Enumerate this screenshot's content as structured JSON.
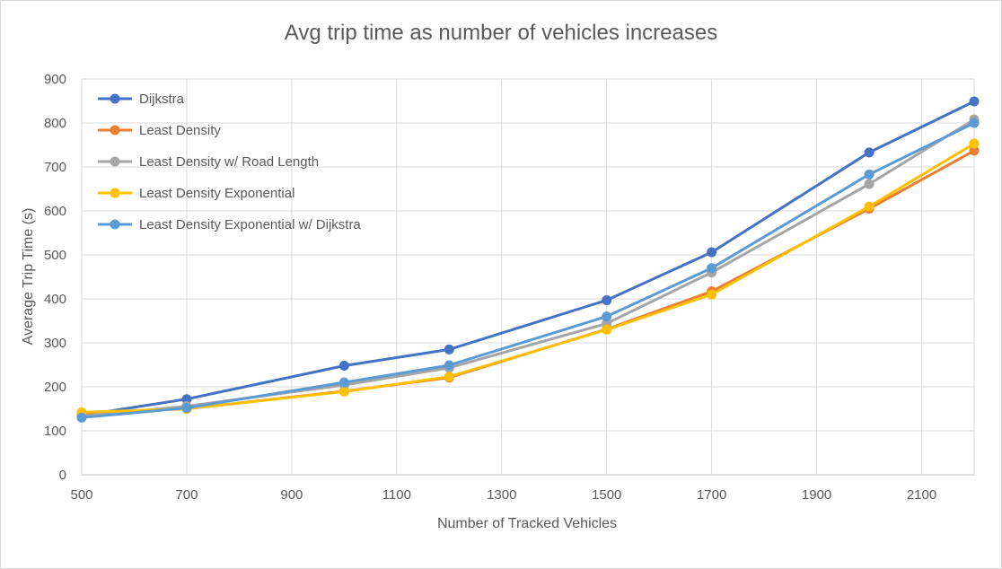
{
  "chart_data": {
    "type": "line",
    "title": "Avg trip time as number of vehicles increases",
    "xlabel": "Number of Tracked Vehicles",
    "ylabel": "Average Trip Time (s)",
    "xlim": [
      500,
      2200
    ],
    "ylim": [
      0,
      900
    ],
    "x_ticks": [
      500,
      700,
      900,
      1100,
      1300,
      1500,
      1700,
      1900,
      2100
    ],
    "y_ticks": [
      0,
      100,
      200,
      300,
      400,
      500,
      600,
      700,
      800,
      900
    ],
    "grid": true,
    "legend_position": "top-left",
    "x": [
      500,
      700,
      1000,
      1200,
      1500,
      1700,
      2000,
      2200
    ],
    "series": [
      {
        "name": "Dijkstra",
        "color": "#4472c4",
        "values": [
          135,
          172,
          248,
          285,
          397,
          506,
          733,
          849
        ]
      },
      {
        "name": "Least Density",
        "color": "#ed7d31",
        "values": [
          140,
          150,
          190,
          221,
          331,
          417,
          605,
          737
        ]
      },
      {
        "name": "Least Density w/ Road Length",
        "color": "#a5a5a5",
        "values": [
          133,
          156,
          204,
          243,
          344,
          460,
          661,
          808
        ]
      },
      {
        "name": "Least Density Exponential",
        "color": "#ffc000",
        "values": [
          142,
          150,
          189,
          223,
          330,
          410,
          610,
          753
        ]
      },
      {
        "name": "Least Density Exponential w/ Dijkstra",
        "color": "#5b9bd5",
        "values": [
          130,
          152,
          210,
          249,
          360,
          470,
          683,
          800
        ]
      }
    ]
  }
}
